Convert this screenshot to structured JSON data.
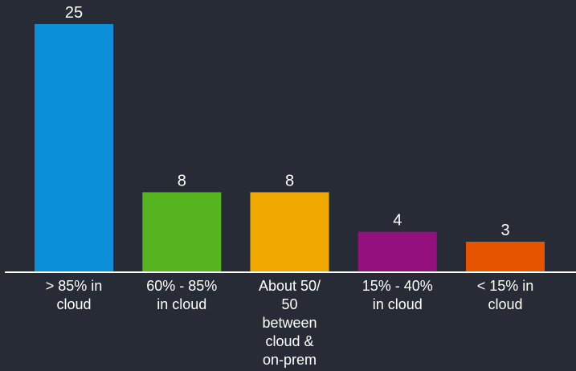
{
  "chart_data": {
    "type": "bar",
    "categories": [
      "> 85% in cloud",
      "60% - 85% in cloud",
      "About 50/ 50 between cloud & on-prem",
      "15% - 40% in cloud",
      "< 15% in cloud"
    ],
    "category_lines": [
      [
        "> 85% in",
        "cloud"
      ],
      [
        "60% - 85%",
        "in cloud"
      ],
      [
        "About 50/",
        "50",
        "between",
        "cloud &",
        "on-prem"
      ],
      [
        "15% - 40%",
        "in cloud"
      ],
      [
        "< 15% in",
        "cloud"
      ]
    ],
    "values": [
      25,
      8,
      8,
      4,
      3
    ],
    "value_labels": [
      "25",
      "8",
      "8",
      "4",
      "3"
    ],
    "colors": [
      "#0a8fd8",
      "#56b51e",
      "#f0a800",
      "#94107e",
      "#e65400"
    ],
    "axis_color": "#ffffff",
    "background": "#272b35",
    "ylim": [
      0,
      25
    ],
    "grid": false,
    "title": "",
    "xlabel": "",
    "ylabel": ""
  }
}
